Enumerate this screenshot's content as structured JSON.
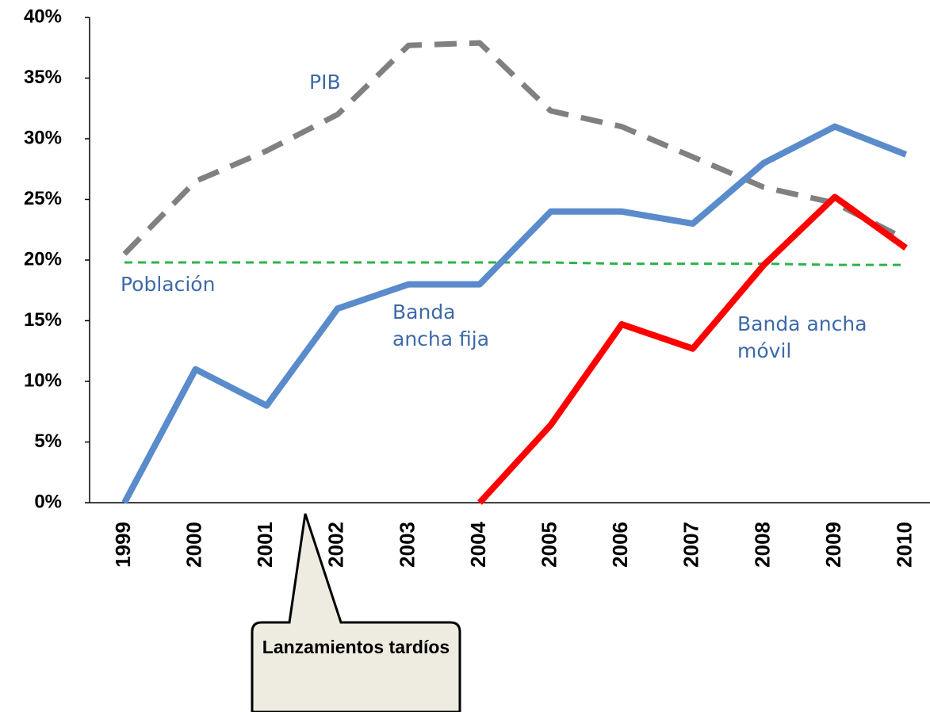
{
  "chart_data": {
    "type": "line",
    "categories": [
      "1999",
      "2000",
      "2001",
      "2002",
      "2003",
      "2004",
      "2005",
      "2006",
      "2007",
      "2008",
      "2009",
      "2010"
    ],
    "series": [
      {
        "name": "PIB",
        "color": "#808080",
        "dash": true,
        "values": [
          20.5,
          26.5,
          29,
          32,
          37.7,
          37.9,
          32.3,
          31,
          28.5,
          26,
          24.7,
          21.7
        ]
      },
      {
        "name": "Población",
        "color": "#2db34a",
        "dash": true,
        "values": [
          19.8,
          19.8,
          19.8,
          19.8,
          19.8,
          19.8,
          19.8,
          19.7,
          19.7,
          19.7,
          19.6,
          19.6
        ]
      },
      {
        "name": "Banda ancha fija",
        "color": "#5a8bcb",
        "dash": false,
        "values": [
          0,
          11,
          8,
          16,
          18,
          18,
          24,
          24,
          23,
          28,
          31,
          28.7
        ]
      },
      {
        "name": "Banda ancha móvil",
        "color": "#ff0000",
        "dash": false,
        "values": [
          null,
          null,
          null,
          null,
          null,
          0,
          6.4,
          14.7,
          12.7,
          19.6,
          25.2,
          21
        ]
      }
    ],
    "ylim": [
      0,
      40
    ],
    "yticks": [
      {
        "value": 0,
        "label": "0%"
      },
      {
        "value": 5,
        "label": "5%"
      },
      {
        "value": 10,
        "label": "10%"
      },
      {
        "value": 15,
        "label": "15%"
      },
      {
        "value": 20,
        "label": "20%"
      },
      {
        "value": 25,
        "label": "25%"
      },
      {
        "value": 30,
        "label": "30%"
      },
      {
        "value": 35,
        "label": "35%"
      },
      {
        "value": 40,
        "label": "40%"
      }
    ],
    "annotation": "Lanzamientos tardíos"
  }
}
